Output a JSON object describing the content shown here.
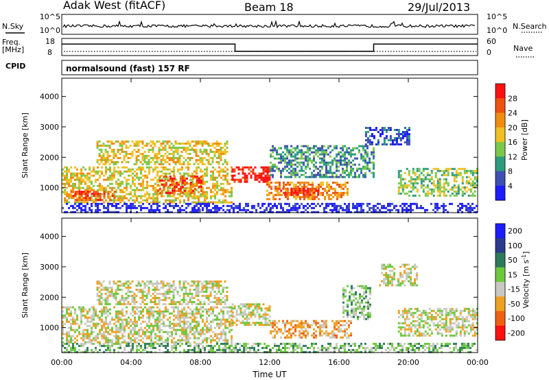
{
  "header": {
    "station": "Adak West (fitACF)",
    "beam": "Beam 18",
    "date": "29/Jul/2013"
  },
  "strip_labels": {
    "nsky": "N.Sky",
    "nsearch": "N.Search",
    "freq_line1": "Freq.",
    "freq_line2": "[MHz]",
    "nave": "Nave",
    "cpid": "CPID",
    "cpid_value": "normalsound (fast) 157 RF"
  },
  "strip_ticks": {
    "noise_left": [
      "10^5",
      "10^0"
    ],
    "noise_right": [
      "10^5",
      "10^0"
    ],
    "freq_left": [
      "18",
      "8"
    ],
    "nave_right": [
      "60",
      "0"
    ]
  },
  "chart_data": [
    {
      "type": "line",
      "name": "frequency-strip",
      "ylabel": "Freq. [MHz]",
      "x_hours": [
        0,
        10.0,
        10.0,
        18.0,
        18.0,
        24
      ],
      "y_mhz": [
        15,
        15,
        10,
        10,
        15,
        15
      ],
      "ylim": [
        8,
        18
      ]
    },
    {
      "type": "heatmap",
      "name": "power-panel",
      "xlabel": "",
      "ylabel": "Slant Range [km]",
      "x_ticks": [
        "00:00",
        "04:00",
        "08:00",
        "12:00",
        "16:00",
        "20:00",
        "00:00"
      ],
      "y_ticks": [
        "1000",
        "2000",
        "3000",
        "4000"
      ],
      "xlim_hours": [
        0,
        24
      ],
      "ylim_km": [
        180,
        4600
      ],
      "colorbar": {
        "label": "Power [dB]",
        "ticks": [
          "4",
          "8",
          "12",
          "16",
          "20",
          "24",
          "28"
        ],
        "colors": [
          "#1c1cff",
          "#3e4fb4",
          "#2c9c7e",
          "#7cc84a",
          "#f0c020",
          "#f08c10",
          "#f05010",
          "#ff1010"
        ]
      },
      "regions": [
        {
          "t0": 0.0,
          "t1": 9.8,
          "r0": 500,
          "r1": 1700,
          "level": 4
        },
        {
          "t0": 0.5,
          "t1": 3.0,
          "r0": 600,
          "r1": 900,
          "level": 6
        },
        {
          "t0": 5.5,
          "t1": 8.0,
          "r0": 850,
          "r1": 1400,
          "level": 6
        },
        {
          "t0": 2.0,
          "t1": 9.5,
          "r0": 1800,
          "r1": 2550,
          "level": 4
        },
        {
          "t0": 9.8,
          "t1": 12.0,
          "r0": 1200,
          "r1": 1700,
          "level": 7
        },
        {
          "t0": 11.8,
          "t1": 16.5,
          "r0": 650,
          "r1": 1200,
          "level": 5
        },
        {
          "t0": 12.6,
          "t1": 14.8,
          "r0": 750,
          "r1": 1000,
          "level": 7
        },
        {
          "t0": 12.0,
          "t1": 18.0,
          "r0": 1350,
          "r1": 2400,
          "level": 2
        },
        {
          "t0": 17.5,
          "t1": 20.0,
          "r0": 2400,
          "r1": 3000,
          "level": 1
        },
        {
          "t0": 19.4,
          "t1": 24.0,
          "r0": 750,
          "r1": 1650,
          "level": 3
        },
        {
          "t0": 0.0,
          "t1": 24.0,
          "r0": 200,
          "r1": 500,
          "level": 0
        }
      ]
    },
    {
      "type": "heatmap",
      "name": "velocity-panel",
      "xlabel": "Time UT",
      "ylabel": "Slant Range [km]",
      "x_ticks": [
        "00:00",
        "04:00",
        "08:00",
        "12:00",
        "16:00",
        "20:00",
        "00:00"
      ],
      "y_ticks": [
        "1000",
        "2000",
        "3000",
        "4000"
      ],
      "xlim_hours": [
        0,
        24
      ],
      "ylim_km": [
        180,
        4600
      ],
      "colorbar": {
        "label": "Velocity [m s^-1]",
        "ticks": [
          "200",
          "100",
          "50",
          "15",
          "-15",
          "-50",
          "-100",
          "-200"
        ],
        "colors": [
          "#1c1cff",
          "#2c3a8c",
          "#2c7a5a",
          "#6cc83c",
          "#c8c8c0",
          "#f0a020",
          "#f06010",
          "#ff1010"
        ]
      },
      "regions": [
        {
          "t0": 0.0,
          "t1": 9.8,
          "r0": 500,
          "r1": 1700,
          "level": 4
        },
        {
          "t0": 2.0,
          "t1": 9.5,
          "r0": 1800,
          "r1": 2550,
          "level": 4
        },
        {
          "t0": 9.8,
          "t1": 12.0,
          "r0": 1100,
          "r1": 1800,
          "level": 4
        },
        {
          "t0": 12.0,
          "t1": 16.8,
          "r0": 650,
          "r1": 1250,
          "level": 5
        },
        {
          "t0": 16.2,
          "t1": 17.8,
          "r0": 1300,
          "r1": 2400,
          "level": 3
        },
        {
          "t0": 18.3,
          "t1": 20.5,
          "r0": 2400,
          "r1": 3100,
          "level": 4
        },
        {
          "t0": 19.4,
          "t1": 24.0,
          "r0": 750,
          "r1": 1650,
          "level": 4
        },
        {
          "t0": 0.0,
          "t1": 24.0,
          "r0": 200,
          "r1": 500,
          "level": 3
        }
      ]
    }
  ]
}
